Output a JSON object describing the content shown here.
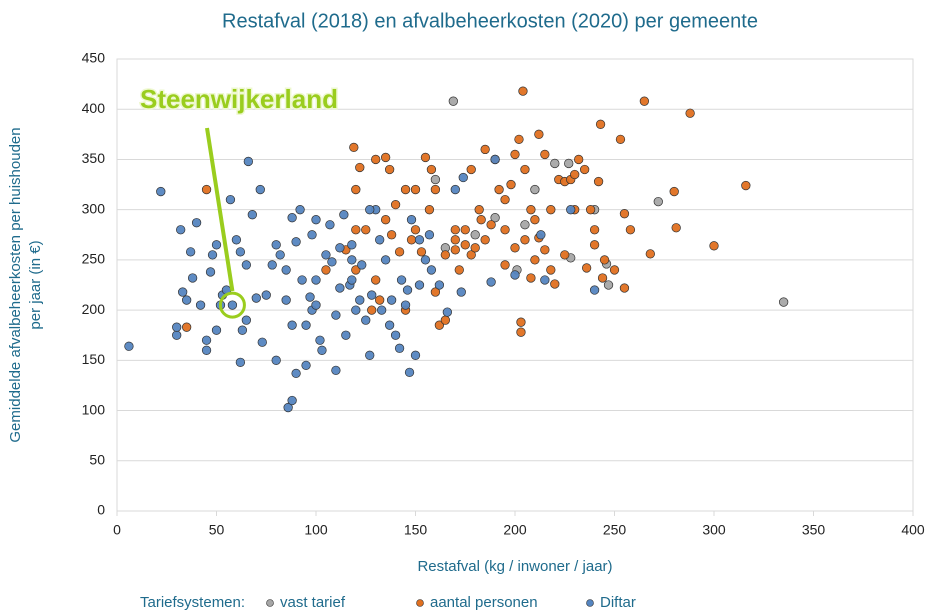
{
  "chart_data": {
    "type": "scatter",
    "title": "Restafval (2018) en afvalbeheerkosten (2020) per gemeente",
    "x_label": "Restafval (kg / inwoner / jaar)",
    "y_label": [
      "Gemiddelde afvalbeheerkosten per huishouden",
      "per jaar (in €)"
    ],
    "legend_title": "Tariefsystemen:",
    "annotation": "Steenwijkerland",
    "annotation_point": {
      "x": 58,
      "y": 205
    },
    "xlim": [
      0,
      400
    ],
    "xticks": [
      0,
      50,
      100,
      150,
      200,
      250,
      300,
      350,
      400
    ],
    "ylim": [
      0,
      450
    ],
    "yticks": [
      0,
      50,
      100,
      150,
      200,
      250,
      300,
      350,
      400,
      450
    ],
    "grid": true,
    "series": [
      {
        "name": "vast tarief",
        "color": "#a6a6a6",
        "x": [
          169,
          160,
          220,
          227,
          272,
          335,
          246,
          228,
          190,
          165,
          201,
          240,
          205,
          210,
          180,
          247
        ],
        "values": [
          408,
          330,
          346,
          346,
          308,
          208,
          246,
          252,
          292,
          262,
          240,
          300,
          285,
          320,
          275,
          225
        ]
      },
      {
        "name": "aantal personen",
        "color": "#e07020",
        "x": [
          35,
          45,
          119,
          120,
          122,
          130,
          135,
          137,
          140,
          145,
          150,
          155,
          158,
          160,
          157,
          165,
          170,
          170,
          170,
          172,
          175,
          178,
          182,
          185,
          188,
          190,
          192,
          195,
          198,
          200,
          202,
          204,
          205,
          208,
          210,
          212,
          215,
          218,
          222,
          225,
          228,
          230,
          232,
          235,
          238,
          240,
          242,
          243,
          245,
          250,
          253,
          255,
          258,
          265,
          268,
          280,
          281,
          288,
          300,
          316,
          255,
          203,
          203,
          130,
          132,
          135,
          138,
          142,
          148,
          150,
          153,
          160,
          162,
          165,
          175,
          178,
          183,
          185,
          195,
          200,
          205,
          210,
          215,
          218,
          220,
          225,
          230,
          236,
          240,
          244,
          120,
          115,
          125,
          105,
          128,
          145,
          180,
          195,
          208,
          212,
          120
        ],
        "values": [
          183,
          320,
          362,
          320,
          342,
          350,
          352,
          340,
          305,
          320,
          320,
          352,
          340,
          320,
          300,
          255,
          280,
          270,
          260,
          240,
          265,
          340,
          300,
          360,
          285,
          350,
          320,
          310,
          325,
          355,
          370,
          418,
          340,
          300,
          290,
          375,
          355,
          300,
          330,
          328,
          330,
          335,
          350,
          340,
          300,
          265,
          328,
          385,
          250,
          240,
          370,
          296,
          280,
          408,
          256,
          318,
          282,
          396,
          264,
          324,
          222,
          188,
          178,
          230,
          210,
          290,
          275,
          258,
          270,
          280,
          258,
          218,
          185,
          190,
          280,
          255,
          290,
          270,
          280,
          262,
          270,
          250,
          260,
          240,
          226,
          255,
          300,
          242,
          280,
          232,
          280,
          260,
          280,
          240,
          200,
          200,
          262,
          245,
          232,
          272,
          240
        ]
      },
      {
        "name": "Diftar",
        "color": "#5585c0",
        "x": [
          6,
          22,
          30,
          30,
          32,
          33,
          35,
          37,
          38,
          40,
          42,
          45,
          47,
          48,
          50,
          52,
          53,
          55,
          57,
          58,
          60,
          62,
          62,
          63,
          65,
          66,
          68,
          70,
          72,
          73,
          75,
          78,
          80,
          82,
          85,
          86,
          88,
          88,
          90,
          92,
          93,
          95,
          97,
          98,
          100,
          102,
          103,
          105,
          107,
          110,
          112,
          114,
          115,
          117,
          118,
          120,
          122,
          125,
          127,
          130,
          132,
          135,
          138,
          140,
          143,
          145,
          147,
          148,
          150,
          152,
          155,
          158,
          162,
          166,
          170,
          173,
          174,
          188,
          190,
          200,
          213,
          215,
          240,
          228,
          98,
          108,
          118,
          123,
          128,
          133,
          137,
          142,
          146,
          152,
          157,
          80,
          88,
          95,
          100,
          112,
          127,
          45,
          50,
          65,
          85,
          100,
          118,
          110,
          90
        ],
        "values": [
          164,
          318,
          175,
          183,
          280,
          218,
          210,
          258,
          232,
          287,
          205,
          170,
          238,
          255,
          265,
          205,
          215,
          220,
          310,
          205,
          270,
          258,
          148,
          180,
          245,
          348,
          295,
          212,
          320,
          168,
          215,
          245,
          265,
          255,
          240,
          103,
          110,
          292,
          137,
          300,
          230,
          185,
          213,
          275,
          290,
          170,
          160,
          255,
          285,
          140,
          222,
          295,
          175,
          225,
          250,
          200,
          210,
          190,
          155,
          300,
          270,
          250,
          210,
          175,
          230,
          205,
          138,
          290,
          155,
          225,
          250,
          240,
          225,
          198,
          320,
          218,
          332,
          228,
          350,
          235,
          275,
          230,
          220,
          300,
          200,
          248,
          265,
          245,
          215,
          200,
          185,
          162,
          220,
          270,
          275,
          150,
          185,
          145,
          205,
          262,
          300,
          160,
          180,
          190,
          210,
          230,
          230,
          195,
          268
        ]
      }
    ]
  }
}
